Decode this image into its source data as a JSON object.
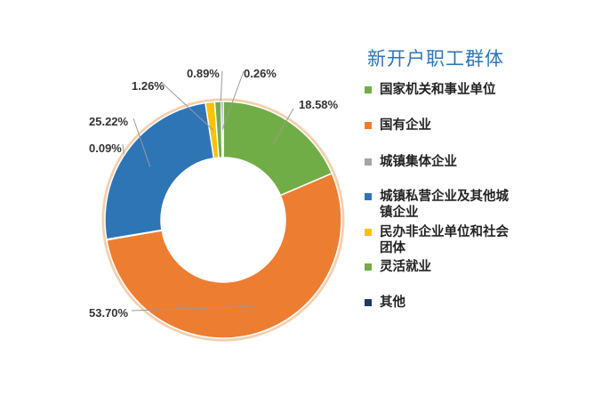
{
  "chart_data": {
    "type": "pie",
    "variant": "donut",
    "title": "新开户职工群体",
    "legend_position": "right",
    "series": [
      {
        "name": "国家机关和事业单位",
        "value": 18.58,
        "label": "18.58%",
        "color": "#70AD47"
      },
      {
        "name": "国有企业",
        "value": 53.7,
        "label": "53.70%",
        "color": "#ED7D31"
      },
      {
        "name": "城镇集体企业",
        "value": 0.09,
        "label": "0.09%",
        "color": "#A5A5A5"
      },
      {
        "name": "城镇私营企业及其他城镇企业",
        "value": 25.22,
        "label": "25.22%",
        "color": "#2E75B6"
      },
      {
        "name": "民办非企业单位和社会团体",
        "value": 1.26,
        "label": "1.26%",
        "color": "#FFC000"
      },
      {
        "name": "灵活就业",
        "value": 0.89,
        "label": "0.89%",
        "color": "#70AD47"
      },
      {
        "name": "其他",
        "value": 0.26,
        "label": "0.26%",
        "color": "#1F3864"
      }
    ]
  }
}
